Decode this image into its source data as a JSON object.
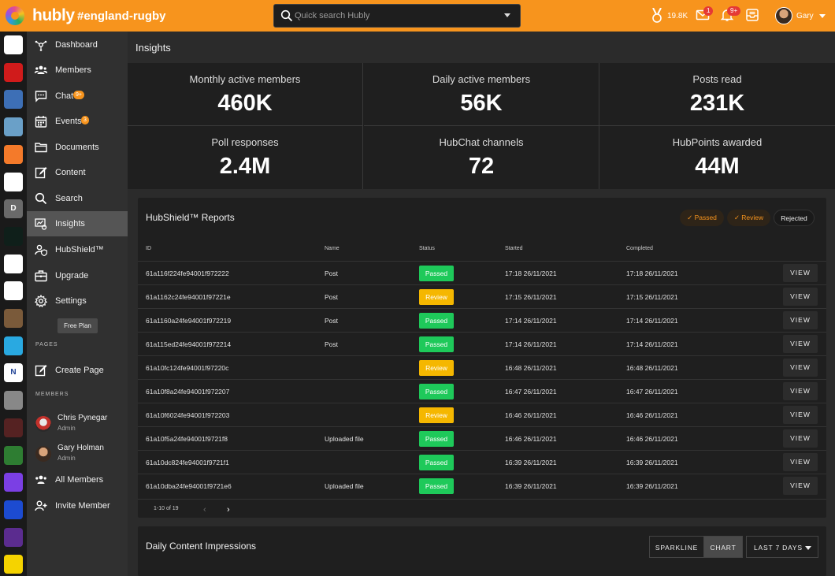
{
  "topbar": {
    "brand": "hubly",
    "hub_name": "#england-rugby",
    "search_placeholder": "Quick search Hubly",
    "points": "19.8K",
    "inbox_badge": "1",
    "notif_badge": "9+",
    "user_name": "Gary",
    "accent": "#f7941d"
  },
  "rail": {
    "hubs": [
      {
        "icon": "england-rugby-hub-icon",
        "color": "#ffffff",
        "text": ""
      },
      {
        "icon": "man-utd-hub-icon",
        "color": "#d01b1b",
        "text": ""
      },
      {
        "icon": "ethereum-hub-icon",
        "color": "#3d6fb6",
        "text": ""
      },
      {
        "icon": "game-art-hub-icon",
        "color": "#6aa0c8",
        "text": ""
      },
      {
        "icon": "orange-badge-hub-icon",
        "color": "#f47a2a",
        "text": ""
      },
      {
        "icon": "crest-hub-icon",
        "color": "#ffffff",
        "text": ""
      },
      {
        "icon": "letter-d-hub-icon",
        "color": "#6a6a6a",
        "text": "D"
      },
      {
        "icon": "kitex-hub-icon",
        "color": "#0f1f1a",
        "text": ""
      },
      {
        "icon": "lamborghini-hub-icon",
        "color": "#ffffff",
        "text": ""
      },
      {
        "icon": "england-lions-hub-icon",
        "color": "#ffffff",
        "text": ""
      },
      {
        "icon": "heroes-hub-icon",
        "color": "#7a5a3a",
        "text": ""
      },
      {
        "icon": "app-hub-icon",
        "color": "#29a9e1",
        "text": ""
      },
      {
        "icon": "letter-n-hub-icon",
        "color": "#ffffff",
        "text": "N"
      },
      {
        "icon": "photo-hub-icon",
        "color": "#888888",
        "text": ""
      },
      {
        "icon": "dark-art-hub-icon",
        "color": "#552222",
        "text": ""
      },
      {
        "icon": "tv-hub-icon",
        "color": "#2e7d32",
        "text": ""
      },
      {
        "icon": "purple-hub-icon",
        "color": "#7b3fe4",
        "text": ""
      },
      {
        "icon": "alpine-hub-icon",
        "color": "#1c4bd1",
        "text": ""
      },
      {
        "icon": "scouts-hub-icon",
        "color": "#5b2c8f",
        "text": ""
      },
      {
        "icon": "sun-hub-icon",
        "color": "#f5d300",
        "text": ""
      }
    ]
  },
  "sidebar": {
    "items": [
      {
        "label": "Dashboard",
        "icon": "dashboard-icon",
        "badge": ""
      },
      {
        "label": "Members",
        "icon": "members-icon",
        "badge": ""
      },
      {
        "label": "Chat",
        "icon": "chat-icon",
        "badge": "9+"
      },
      {
        "label": "Events",
        "icon": "calendar-icon",
        "badge": "3"
      },
      {
        "label": "Documents",
        "icon": "folder-icon",
        "badge": ""
      },
      {
        "label": "Content",
        "icon": "edit-icon",
        "badge": ""
      },
      {
        "label": "Search",
        "icon": "search-icon",
        "badge": ""
      },
      {
        "label": "Insights",
        "icon": "insights-icon",
        "badge": ""
      },
      {
        "label": "HubShield™",
        "icon": "shield-user-icon",
        "badge": ""
      },
      {
        "label": "Upgrade",
        "icon": "briefcase-icon",
        "badge": ""
      },
      {
        "label": "Settings",
        "icon": "gear-icon",
        "badge": ""
      }
    ],
    "free_plan": "Free Plan",
    "pages_heading": "PAGES",
    "create_page": "Create Page",
    "members_heading": "MEMBERS",
    "members": [
      {
        "name": "Chris Pynegar",
        "role": "Admin"
      },
      {
        "name": "Gary Holman",
        "role": "Admin"
      }
    ],
    "all_members": "All Members",
    "invite_member": "Invite Member"
  },
  "main": {
    "title": "Insights",
    "stats": [
      {
        "label": "Monthly active members",
        "value": "460K"
      },
      {
        "label": "Daily active members",
        "value": "56K"
      },
      {
        "label": "Posts read",
        "value": "231K"
      },
      {
        "label": "Poll responses",
        "value": "2.4M"
      },
      {
        "label": "HubChat channels",
        "value": "72"
      },
      {
        "label": "HubPoints awarded",
        "value": "44M"
      }
    ]
  },
  "reports": {
    "title": "HubShield™ Reports",
    "filters": [
      "Passed",
      "Review",
      "Rejected"
    ],
    "columns": [
      "ID",
      "Name",
      "Status",
      "Started",
      "Completed"
    ],
    "rows": [
      {
        "id": "61a116f224fe94001f972222",
        "name": "Post",
        "status": "Passed",
        "started": "17:18 26/11/2021",
        "completed": "17:18 26/11/2021"
      },
      {
        "id": "61a1162c24fe94001f97221e",
        "name": "Post",
        "status": "Review",
        "started": "17:15 26/11/2021",
        "completed": "17:15 26/11/2021"
      },
      {
        "id": "61a1160a24fe94001f972219",
        "name": "Post",
        "status": "Passed",
        "started": "17:14 26/11/2021",
        "completed": "17:14 26/11/2021"
      },
      {
        "id": "61a115ed24fe94001f972214",
        "name": "Post",
        "status": "Passed",
        "started": "17:14 26/11/2021",
        "completed": "17:14 26/11/2021"
      },
      {
        "id": "61a10fc124fe94001f97220c",
        "name": "",
        "status": "Review",
        "started": "16:48 26/11/2021",
        "completed": "16:48 26/11/2021"
      },
      {
        "id": "61a10f8a24fe94001f972207",
        "name": "",
        "status": "Passed",
        "started": "16:47 26/11/2021",
        "completed": "16:47 26/11/2021"
      },
      {
        "id": "61a10f6024fe94001f972203",
        "name": "",
        "status": "Review",
        "started": "16:46 26/11/2021",
        "completed": "16:46 26/11/2021"
      },
      {
        "id": "61a10f5a24fe94001f9721f8",
        "name": "Uploaded file",
        "status": "Passed",
        "started": "16:46 26/11/2021",
        "completed": "16:46 26/11/2021"
      },
      {
        "id": "61a10dc824fe94001f9721f1",
        "name": "",
        "status": "Passed",
        "started": "16:39 26/11/2021",
        "completed": "16:39 26/11/2021"
      },
      {
        "id": "61a10dba24fe94001f9721e6",
        "name": "Uploaded file",
        "status": "Passed",
        "started": "16:39 26/11/2021",
        "completed": "16:39 26/11/2021"
      }
    ],
    "view_label": "VIEW",
    "pagination": "1-10 of 19"
  },
  "impressions": {
    "title": "Daily Content Impressions",
    "sparkline": "SPARKLINE",
    "chart": "CHART",
    "range": "LAST 7 DAYS"
  }
}
